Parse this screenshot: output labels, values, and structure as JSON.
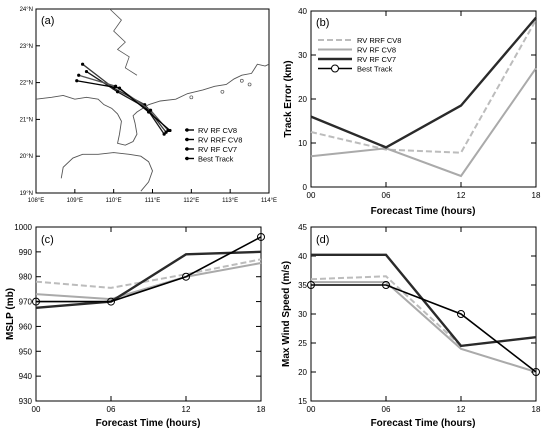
{
  "colors": {
    "rf_cv8": "#aaaaaa",
    "rrf_cv8": "#bcbcbc",
    "rf_cv7": "#2a2a2a",
    "best_track": "#000000",
    "coastline": "#555555"
  },
  "chart_data": [
    {
      "panel": "(a)",
      "type": "map",
      "xlim": [
        108,
        114
      ],
      "ylim": [
        19,
        24
      ],
      "x_ticks": [
        "108°E",
        "109°E",
        "110°E",
        "111°E",
        "112°E",
        "113°E",
        "114°E"
      ],
      "y_ticks": [
        "19°N",
        "20°N",
        "21°N",
        "22°N",
        "23°N",
        "24°N"
      ],
      "legend": [
        "RV   RF   CV8",
        "RV RRF   CV8",
        "RV   RF   CV7",
        "Best Track"
      ],
      "legend_position": "bottom-right",
      "tracks": [
        {
          "name": "RV   RF   CV8",
          "lon": [
            111.35,
            110.8,
            110.0,
            109.2
          ],
          "lat": [
            20.65,
            21.4,
            21.85,
            22.5
          ]
        },
        {
          "name": "RV RRF   CV8",
          "lon": [
            111.3,
            110.85,
            110.1,
            109.3
          ],
          "lat": [
            20.6,
            21.3,
            21.75,
            22.3
          ]
        },
        {
          "name": "RV   RF   CV7",
          "lon": [
            111.4,
            110.95,
            110.05,
            109.1
          ],
          "lat": [
            20.7,
            21.25,
            21.9,
            22.2
          ]
        },
        {
          "name": "Best Track",
          "lon": [
            111.45,
            110.9,
            110.15,
            109.05
          ],
          "lat": [
            20.7,
            21.2,
            21.85,
            22.05
          ]
        }
      ]
    },
    {
      "panel": "(b)",
      "type": "line",
      "x": [
        "00",
        "06",
        "12",
        "18"
      ],
      "xlabel": "Forecast Time (hours)",
      "ylabel": "Track Error (km)",
      "ylim": [
        0,
        40
      ],
      "y_ticks": [
        0,
        10,
        20,
        30,
        40
      ],
      "legend": [
        "RV   RRF   CV8",
        "RV   RF   CV8",
        "RV   RF   CV7",
        "Best Track"
      ],
      "legend_position": "top-left",
      "series": [
        {
          "name": "RV   RRF   CV8",
          "values": [
            12.5,
            8.5,
            7.8,
            38.0
          ]
        },
        {
          "name": "RV   RF   CV8",
          "values": [
            7.0,
            8.8,
            2.5,
            27.0
          ]
        },
        {
          "name": "RV   RF   CV7",
          "values": [
            16.0,
            9.0,
            18.5,
            38.5
          ]
        }
      ]
    },
    {
      "panel": "(c)",
      "type": "line",
      "x": [
        "00",
        "06",
        "12",
        "18"
      ],
      "xlabel": "Forecast Time (hours)",
      "ylabel": "MSLP (mb)",
      "ylim": [
        930,
        1000
      ],
      "y_ticks": [
        930,
        940,
        950,
        960,
        970,
        980,
        990,
        1000
      ],
      "series": [
        {
          "name": "RV   RRF   CV8",
          "values": [
            978.0,
            975.5,
            981.0,
            987.0
          ]
        },
        {
          "name": "RV   RF   CV8",
          "values": [
            973.0,
            971.0,
            980.0,
            985.5
          ]
        },
        {
          "name": "RV   RF   CV7",
          "values": [
            967.5,
            970.0,
            989.0,
            990.0
          ]
        },
        {
          "name": "Best Track",
          "values": [
            970.0,
            970.0,
            980.0,
            996.0
          ]
        }
      ]
    },
    {
      "panel": "(d)",
      "type": "line",
      "x": [
        "00",
        "06",
        "12",
        "18"
      ],
      "xlabel": "Forecast Time (hours)",
      "ylabel": "Max Wind Speed (m/s)",
      "ylim": [
        15,
        45
      ],
      "y_ticks": [
        15,
        20,
        25,
        30,
        35,
        40,
        45
      ],
      "series": [
        {
          "name": "RV   RRF   CV8",
          "values": [
            36.0,
            36.5,
            24.5,
            26.0
          ]
        },
        {
          "name": "RV   RF   CV8",
          "values": [
            35.5,
            35.5,
            24.0,
            20.0
          ]
        },
        {
          "name": "RV   RF   CV7",
          "values": [
            40.2,
            40.2,
            24.5,
            26.0
          ]
        },
        {
          "name": "Best Track",
          "values": [
            35.0,
            35.0,
            30.0,
            20.0
          ]
        }
      ]
    }
  ]
}
